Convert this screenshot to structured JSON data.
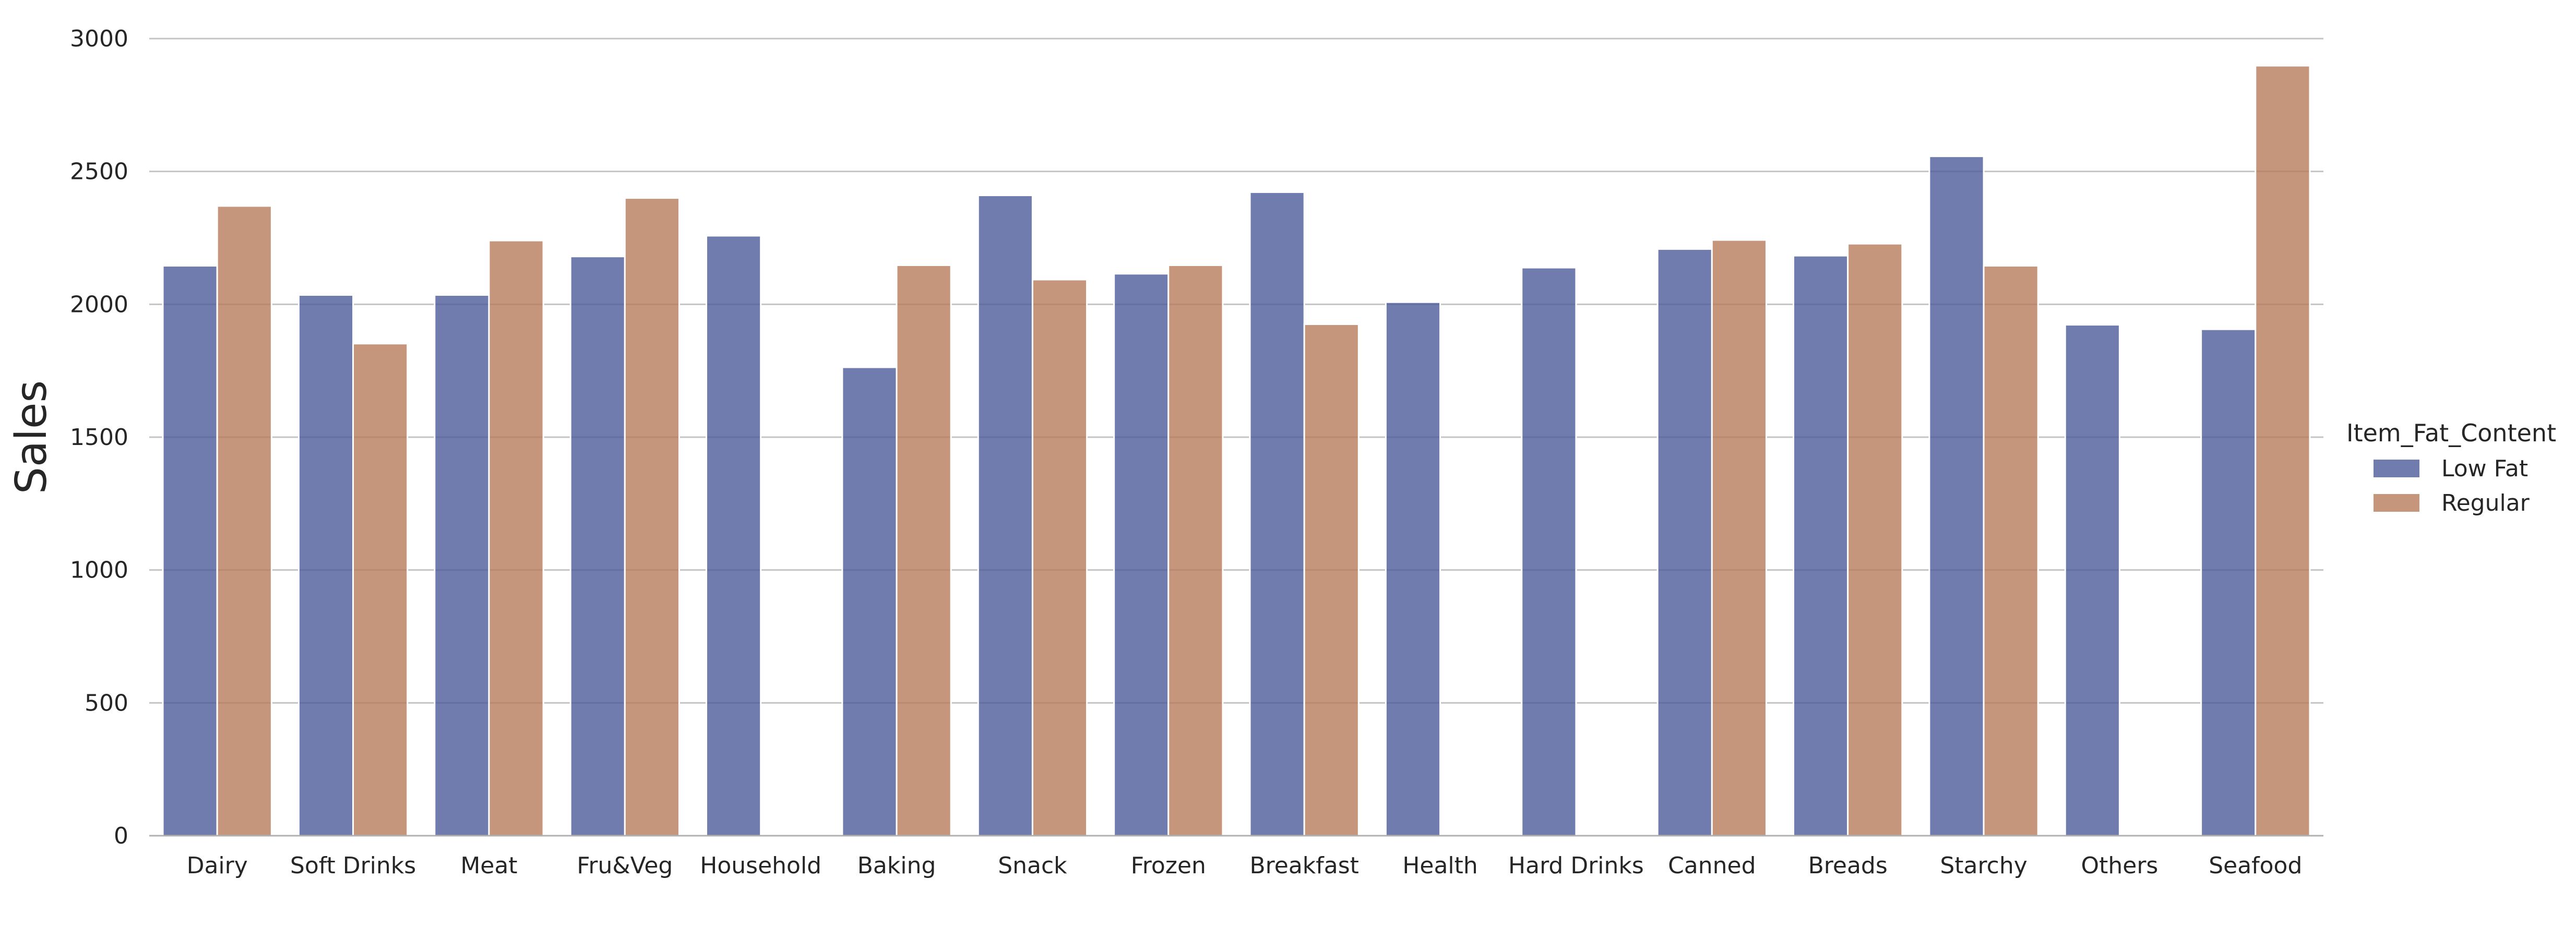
{
  "chart_data": {
    "type": "bar",
    "title": "",
    "xlabel": "",
    "ylabel": "Sales",
    "ylim": [
      0,
      3000
    ],
    "yticks": [
      0,
      500,
      1000,
      1500,
      2000,
      2500,
      3000
    ],
    "grid": "horizontal",
    "legend": {
      "title": "Item_Fat_Content",
      "placement": "right"
    },
    "categories": [
      "Dairy",
      "Soft Drinks",
      "Meat",
      "Fru&Veg",
      "Household",
      "Baking",
      "Snack",
      "Frozen",
      "Breakfast",
      "Health",
      "Hard Drinks",
      "Canned",
      "Breads",
      "Starchy",
      "Others",
      "Seafood"
    ],
    "series": [
      {
        "name": "Low Fat",
        "color": "#4c5b98",
        "values": [
          2145,
          2035,
          2035,
          2180,
          2258,
          1763,
          2410,
          2115,
          2422,
          2008,
          2138,
          2208,
          2183,
          2557,
          1923,
          1906
        ]
      },
      {
        "name": "Regular",
        "color": "#b77a5b",
        "values": [
          2370,
          1852,
          2240,
          2400,
          null,
          2147,
          2093,
          2147,
          1925,
          null,
          null,
          2242,
          2228,
          2145,
          null,
          2898
        ]
      }
    ]
  }
}
